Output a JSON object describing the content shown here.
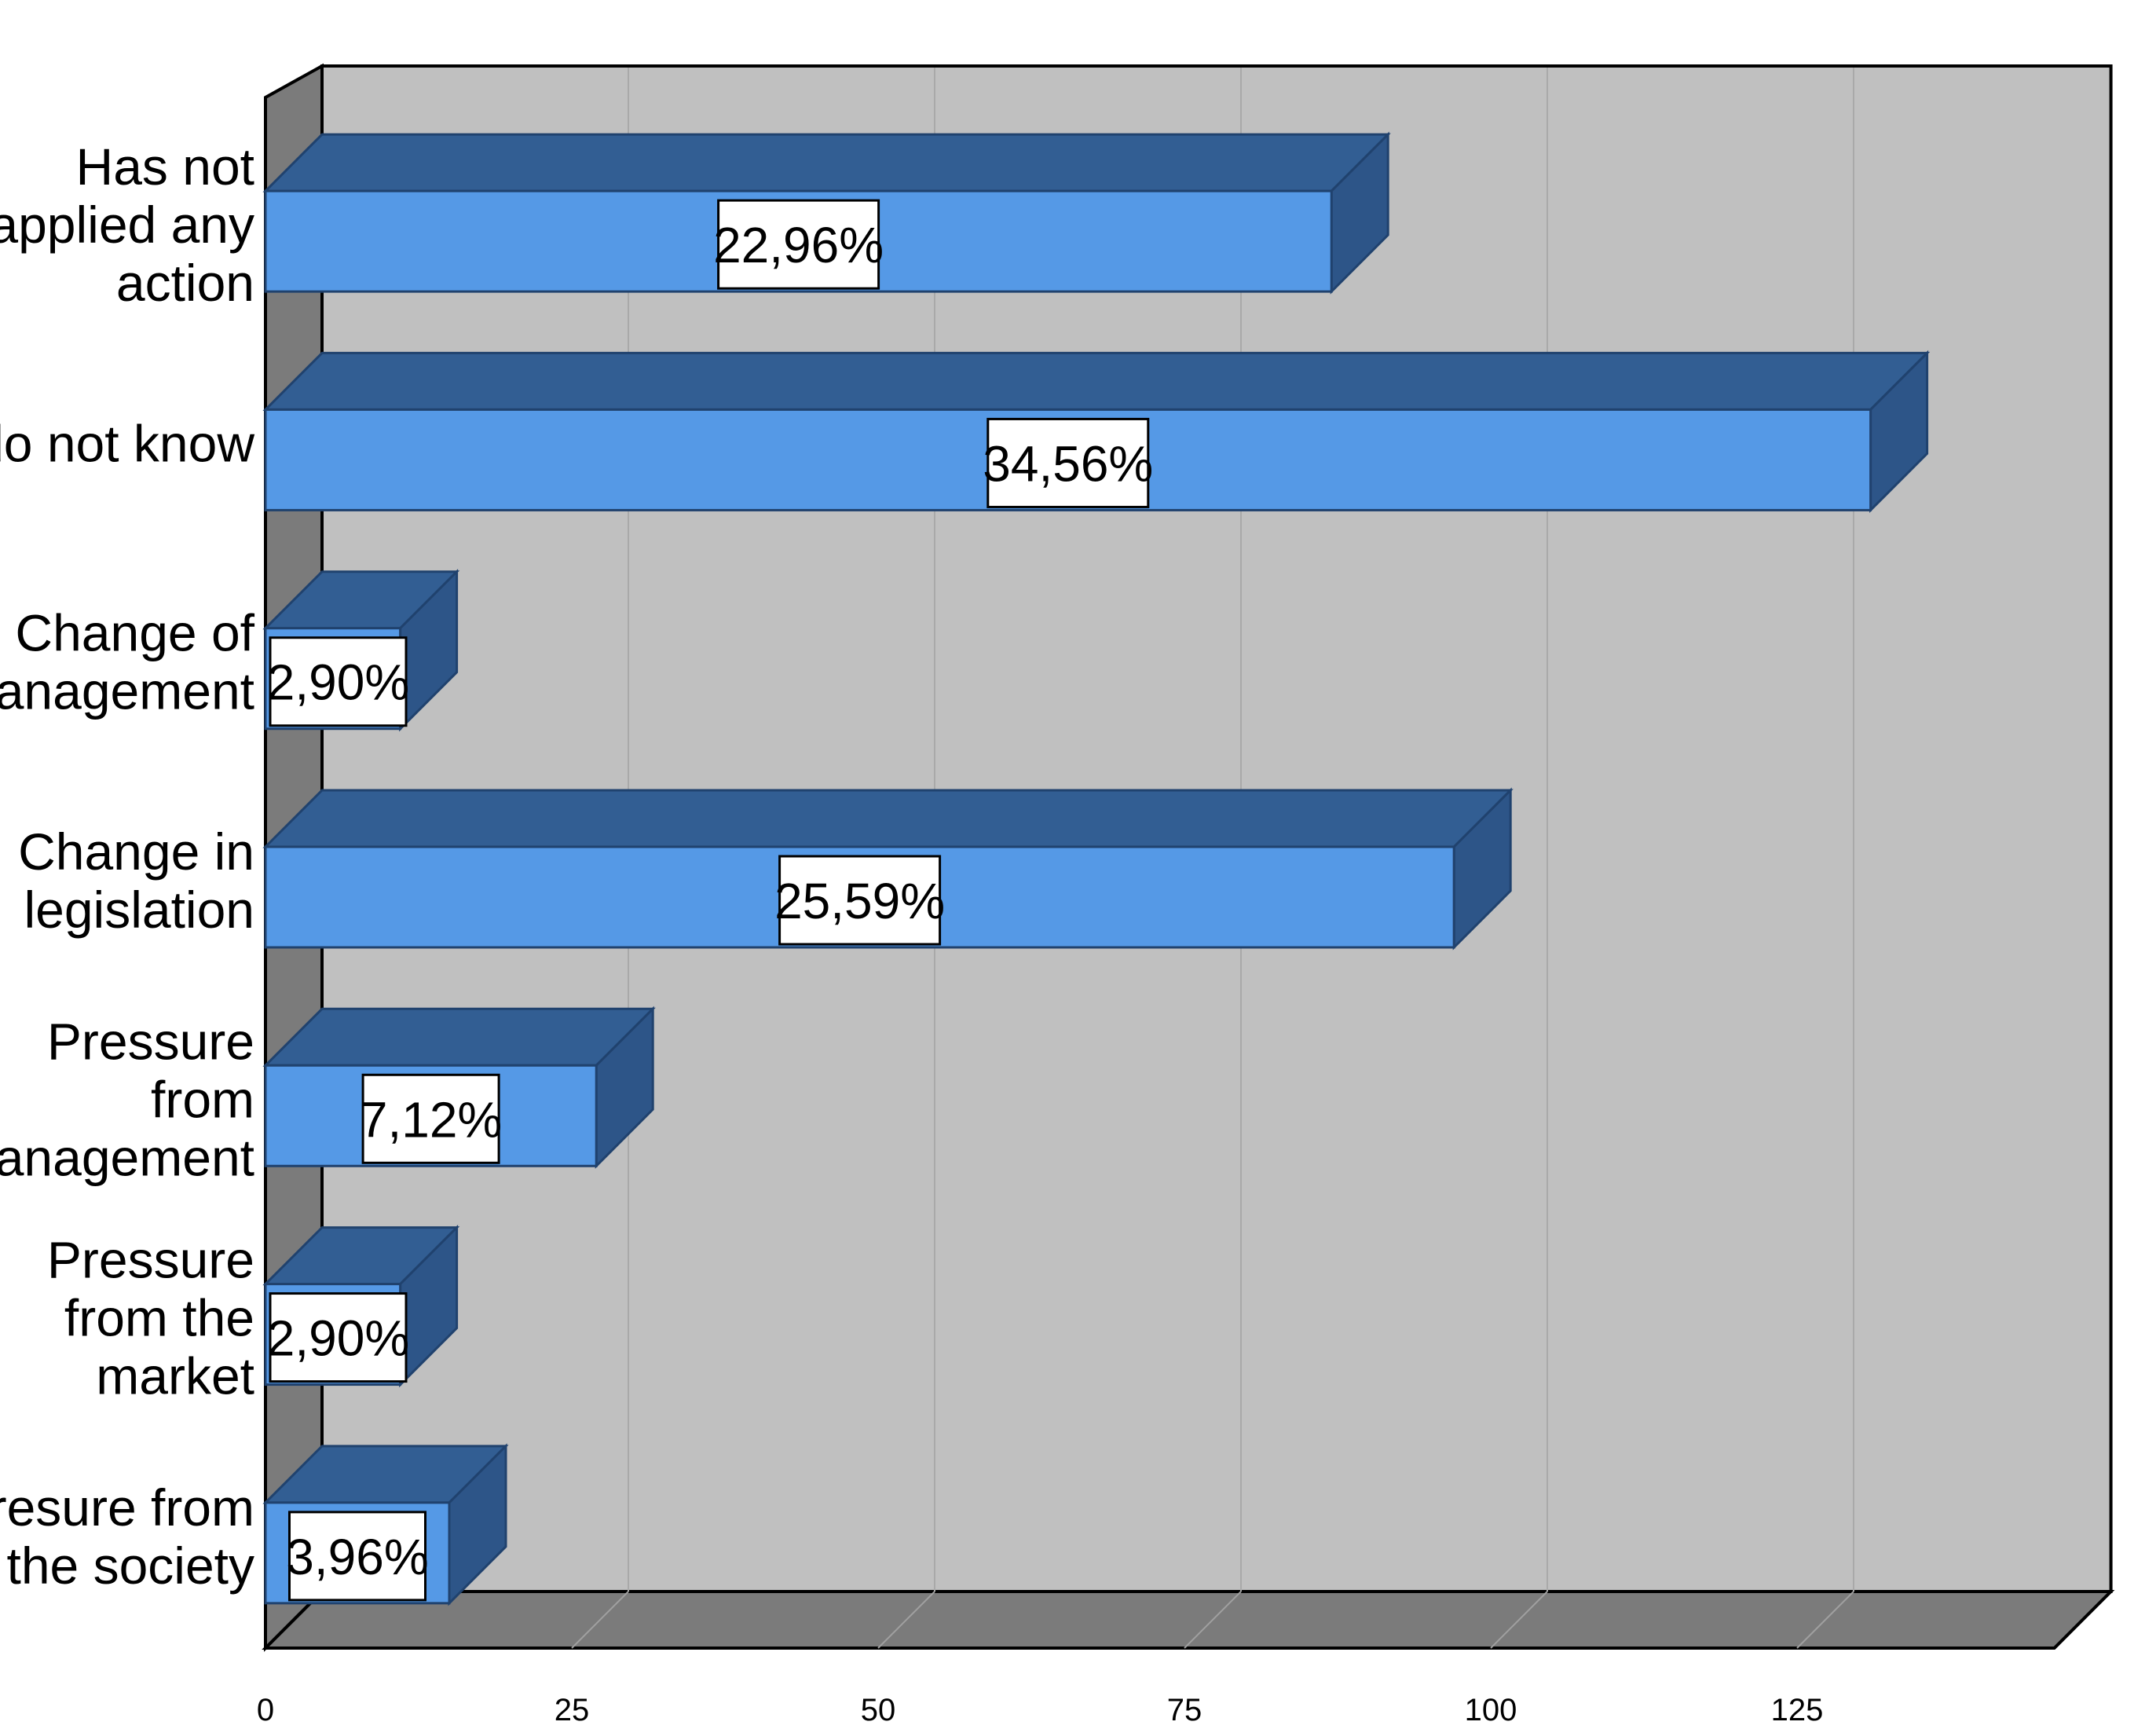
{
  "chart_data": {
    "type": "bar",
    "orientation": "horizontal",
    "three_d": true,
    "categories": [
      [
        "Has not",
        "applied any",
        "action"
      ],
      [
        "I do not know"
      ],
      [
        "Change of",
        "management"
      ],
      [
        "Change in",
        "legislation"
      ],
      [
        "Pressure",
        "from",
        "management"
      ],
      [
        "Pressure",
        "from the",
        "market"
      ],
      [
        "Presure from",
        "the society"
      ]
    ],
    "values": [
      87,
      131,
      11,
      97,
      27,
      11,
      15
    ],
    "data_labels": [
      "22,96%",
      "34,56%",
      "2,90%",
      "25,59%",
      "7,12%",
      "2,90%",
      "3,96%"
    ],
    "xticks": [
      0,
      25,
      50,
      75,
      100,
      125
    ],
    "xlim": [
      0,
      146
    ],
    "grid": true,
    "legend": "none",
    "title": "",
    "xlabel": "",
    "ylabel": "",
    "colors": {
      "bar_front": "#5599e6",
      "bar_top": "#325e93",
      "bar_side": "#2d5588",
      "bar_outline": "#20426e",
      "back_wall": "#c0c0c0",
      "side_wall": "#7b7b7b",
      "floor": "#7b7b7b",
      "gridline": "#a9a9a9",
      "frame": "#000000",
      "label_box": "#ffffff"
    }
  }
}
